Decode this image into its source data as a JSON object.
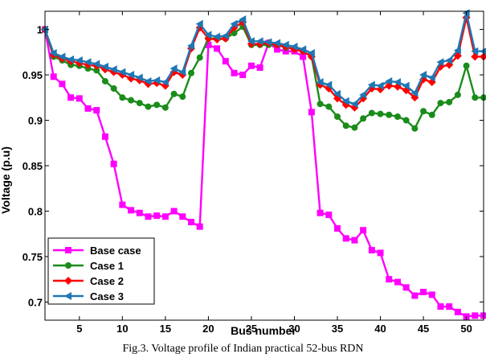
{
  "chart_data": {
    "type": "line",
    "title": "",
    "xlabel": "Bus number",
    "ylabel": "Voltage (p.u)",
    "caption": "Fig.3. Voltage profile of Indian practical 52-bus RDN",
    "xlim": [
      1,
      52
    ],
    "ylim": [
      0.68,
      1.02
    ],
    "x_ticks": [
      5,
      10,
      15,
      20,
      25,
      30,
      35,
      40,
      45,
      50
    ],
    "x_tick_labels": [
      "5",
      "10",
      "15",
      "20",
      "25",
      "30",
      "35",
      "40",
      "45",
      "50"
    ],
    "y_ticks": [
      0.7,
      0.75,
      0.8,
      0.85,
      0.9,
      0.95,
      1.0
    ],
    "y_tick_labels": [
      "0.7",
      "0.75",
      "0.8",
      "0.85",
      "0.9",
      "0.95",
      "1"
    ],
    "grid": false,
    "legend_position": "bottom-left",
    "x": [
      1,
      2,
      3,
      4,
      5,
      6,
      7,
      8,
      9,
      10,
      11,
      12,
      13,
      14,
      15,
      16,
      17,
      18,
      19,
      20,
      21,
      22,
      23,
      24,
      25,
      26,
      27,
      28,
      29,
      30,
      31,
      32,
      33,
      34,
      35,
      36,
      37,
      38,
      39,
      40,
      41,
      42,
      43,
      44,
      45,
      46,
      47,
      48,
      49,
      50,
      51,
      52
    ],
    "series": [
      {
        "name": "Base case",
        "color": "#ff00ff",
        "marker": "square",
        "values": [
          1.0,
          0.948,
          0.94,
          0.925,
          0.924,
          0.913,
          0.911,
          0.882,
          0.852,
          0.807,
          0.801,
          0.798,
          0.794,
          0.795,
          0.794,
          0.8,
          0.794,
          0.788,
          0.783,
          0.983,
          0.979,
          0.965,
          0.952,
          0.95,
          0.96,
          0.958,
          0.985,
          0.978,
          0.976,
          0.976,
          0.97,
          0.909,
          0.798,
          0.796,
          0.781,
          0.77,
          0.768,
          0.779,
          0.757,
          0.754,
          0.725,
          0.722,
          0.716,
          0.707,
          0.711,
          0.708,
          0.695,
          0.695,
          0.689,
          0.684,
          0.685,
          0.685
        ]
      },
      {
        "name": "Case 1",
        "color": "#1a8c1a",
        "marker": "circle",
        "values": [
          1.0,
          0.97,
          0.966,
          0.961,
          0.96,
          0.957,
          0.955,
          0.943,
          0.935,
          0.925,
          0.922,
          0.919,
          0.915,
          0.917,
          0.914,
          0.929,
          0.926,
          0.952,
          0.969,
          0.99,
          0.99,
          0.99,
          0.996,
          1.003,
          0.983,
          0.983,
          0.983,
          0.983,
          0.98,
          0.979,
          0.976,
          0.97,
          0.918,
          0.915,
          0.904,
          0.894,
          0.892,
          0.902,
          0.908,
          0.907,
          0.906,
          0.904,
          0.9,
          0.891,
          0.91,
          0.906,
          0.919,
          0.92,
          0.928,
          0.96,
          0.925,
          0.925
        ]
      },
      {
        "name": "Case 2",
        "color": "#ff0000",
        "marker": "diamond",
        "values": [
          1.0,
          0.972,
          0.968,
          0.965,
          0.963,
          0.961,
          0.96,
          0.956,
          0.953,
          0.95,
          0.946,
          0.944,
          0.94,
          0.941,
          0.938,
          0.953,
          0.95,
          0.979,
          1.002,
          0.99,
          0.989,
          0.99,
          1.002,
          1.008,
          0.984,
          0.984,
          0.985,
          0.983,
          0.981,
          0.978,
          0.976,
          0.97,
          0.939,
          0.935,
          0.924,
          0.917,
          0.914,
          0.924,
          0.935,
          0.934,
          0.938,
          0.937,
          0.933,
          0.925,
          0.945,
          0.942,
          0.959,
          0.961,
          0.971,
          1.013,
          0.97,
          0.97
        ]
      },
      {
        "name": "Case 3",
        "color": "#1f77b4",
        "marker": "triangle-left",
        "values": [
          1.0,
          0.974,
          0.97,
          0.967,
          0.966,
          0.964,
          0.962,
          0.959,
          0.956,
          0.953,
          0.95,
          0.947,
          0.943,
          0.944,
          0.942,
          0.957,
          0.953,
          0.982,
          1.006,
          0.994,
          0.992,
          0.993,
          1.006,
          1.011,
          0.987,
          0.987,
          0.986,
          0.985,
          0.983,
          0.981,
          0.978,
          0.974,
          0.942,
          0.939,
          0.929,
          0.921,
          0.918,
          0.928,
          0.939,
          0.938,
          0.943,
          0.942,
          0.938,
          0.93,
          0.95,
          0.947,
          0.964,
          0.966,
          0.977,
          1.018,
          0.976,
          0.976
        ]
      }
    ]
  }
}
